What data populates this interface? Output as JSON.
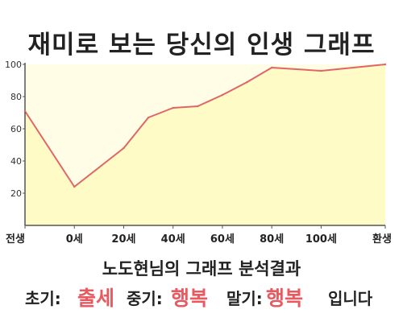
{
  "title": "재미로 보는 당신의 인생 그래프",
  "chart_data": {
    "type": "area",
    "x_categories": [
      "전생",
      "0세",
      "20세",
      "40세",
      "60세",
      "80세",
      "100세",
      "환생"
    ],
    "y_ticks": [
      "20",
      "40",
      "60",
      "80",
      "100"
    ],
    "ylim": [
      0,
      100
    ],
    "grid": false,
    "colors": {
      "fill": "#fffbc6",
      "line": "#e06666",
      "axis": "#555555"
    },
    "series": [
      {
        "x": [
          "전생",
          "0세",
          "20세",
          "30세",
          "40세",
          "50세",
          "60세",
          "70세",
          "80세",
          "100세",
          "환생"
        ],
        "values": [
          71,
          24,
          48,
          67,
          73,
          74,
          81,
          89,
          98,
          96,
          100
        ]
      }
    ]
  },
  "subtitle": "노도현님의 그래프 분석결과",
  "summary": {
    "early_label": "초기:",
    "early_value": "출세",
    "middle_label": "중기:",
    "middle_value": "행복",
    "late_label": "말기:",
    "late_value": "행복",
    "ending": "입니다"
  }
}
